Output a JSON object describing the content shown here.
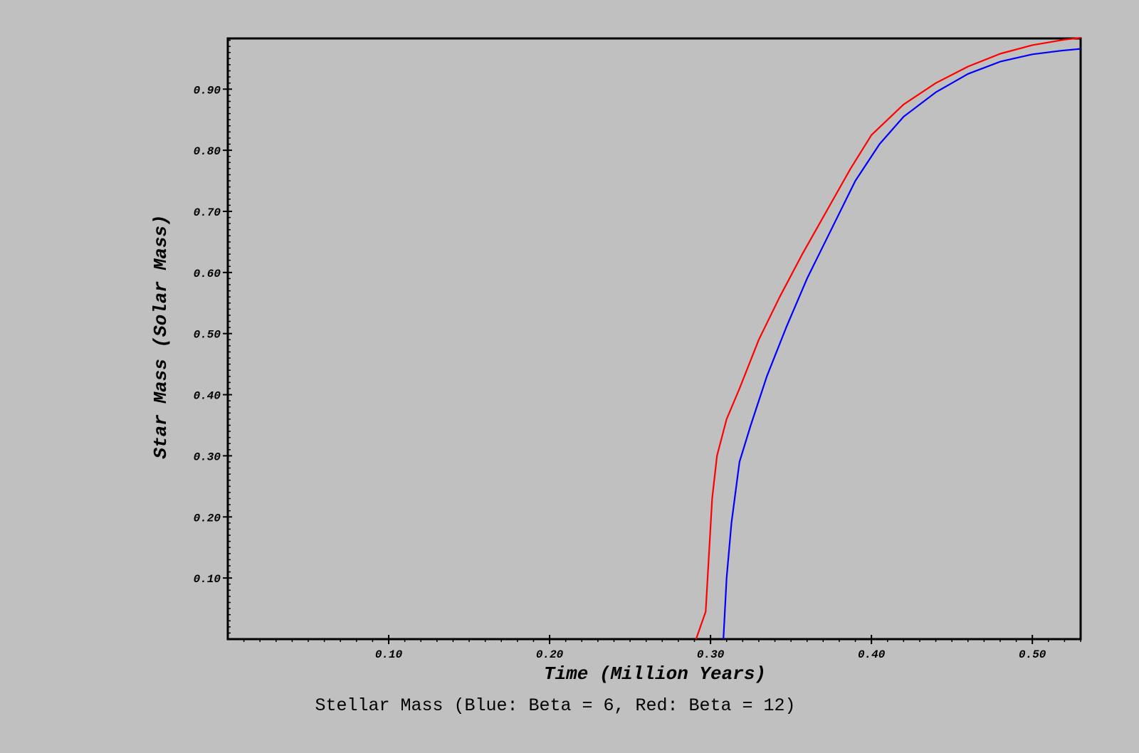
{
  "chart_data": {
    "type": "line",
    "title": "Stellar Mass (Blue: Beta = 6, Red: Beta = 12)",
    "xlabel": "Time (Million Years)",
    "ylabel": "Star Mass (Solar Mass)",
    "xlim": [
      0.0,
      0.53
    ],
    "ylim": [
      0.0,
      0.983
    ],
    "x_ticks": [
      "0.10",
      "0.20",
      "0.30",
      "0.40",
      "0.50"
    ],
    "y_ticks": [
      "0.10",
      "0.20",
      "0.30",
      "0.40",
      "0.50",
      "0.60",
      "0.70",
      "0.80",
      "0.90"
    ],
    "grid": false,
    "legend": false,
    "series": [
      {
        "color": "#0000ff",
        "points": [
          [
            0.308,
            0.0
          ],
          [
            0.31,
            0.1
          ],
          [
            0.313,
            0.19
          ],
          [
            0.318,
            0.29
          ],
          [
            0.325,
            0.35
          ],
          [
            0.335,
            0.43
          ],
          [
            0.347,
            0.51
          ],
          [
            0.36,
            0.59
          ],
          [
            0.375,
            0.67
          ],
          [
            0.39,
            0.75
          ],
          [
            0.405,
            0.81
          ],
          [
            0.42,
            0.855
          ],
          [
            0.44,
            0.895
          ],
          [
            0.46,
            0.925
          ],
          [
            0.48,
            0.945
          ],
          [
            0.5,
            0.957
          ],
          [
            0.518,
            0.963
          ],
          [
            0.53,
            0.966
          ]
        ]
      },
      {
        "color": "#ff0000",
        "points": [
          [
            0.291,
            0.0
          ],
          [
            0.297,
            0.045
          ],
          [
            0.301,
            0.23
          ],
          [
            0.304,
            0.3
          ],
          [
            0.31,
            0.36
          ],
          [
            0.318,
            0.41
          ],
          [
            0.33,
            0.49
          ],
          [
            0.343,
            0.56
          ],
          [
            0.357,
            0.63
          ],
          [
            0.372,
            0.7
          ],
          [
            0.387,
            0.77
          ],
          [
            0.4,
            0.825
          ],
          [
            0.42,
            0.875
          ],
          [
            0.44,
            0.91
          ],
          [
            0.46,
            0.937
          ],
          [
            0.48,
            0.958
          ],
          [
            0.5,
            0.972
          ],
          [
            0.52,
            0.981
          ],
          [
            0.53,
            0.984
          ]
        ]
      }
    ]
  }
}
